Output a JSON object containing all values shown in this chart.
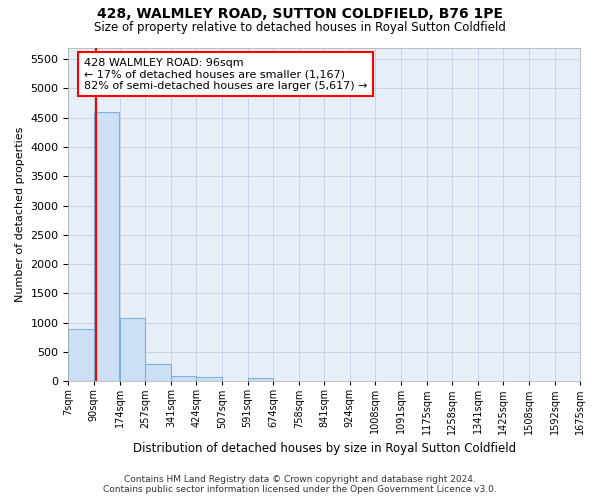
{
  "title": "428, WALMLEY ROAD, SUTTON COLDFIELD, B76 1PE",
  "subtitle": "Size of property relative to detached houses in Royal Sutton Coldfield",
  "xlabel": "Distribution of detached houses by size in Royal Sutton Coldfield",
  "ylabel": "Number of detached properties",
  "footer_line1": "Contains HM Land Registry data © Crown copyright and database right 2024.",
  "footer_line2": "Contains public sector information licensed under the Open Government Licence v3.0.",
  "bins": [
    7,
    90,
    174,
    257,
    341,
    424,
    507,
    591,
    674,
    758,
    841,
    924,
    1008,
    1091,
    1175,
    1258,
    1341,
    1425,
    1508,
    1592,
    1675
  ],
  "bar_heights": [
    900,
    4600,
    1075,
    290,
    85,
    75,
    0,
    55,
    0,
    0,
    0,
    0,
    0,
    0,
    0,
    0,
    0,
    0,
    0,
    0
  ],
  "bar_color": "#ccdff5",
  "bar_edge_color": "#7ab4da",
  "property_size": 96,
  "annotation_line1": "428 WALMLEY ROAD: 96sqm",
  "annotation_line2": "← 17% of detached houses are smaller (1,167)",
  "annotation_line3": "82% of semi-detached houses are larger (5,617) →",
  "annotation_box_color": "white",
  "annotation_box_edge_color": "red",
  "red_line_color": "red",
  "ylim": [
    0,
    5700
  ],
  "yticks": [
    0,
    500,
    1000,
    1500,
    2000,
    2500,
    3000,
    3500,
    4000,
    4500,
    5000,
    5500
  ],
  "grid_color": "#c8d4e8",
  "bg_color": "#e8eef8"
}
